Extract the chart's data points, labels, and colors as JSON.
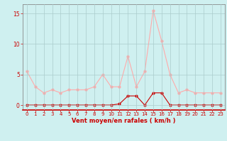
{
  "x": [
    0,
    1,
    2,
    3,
    4,
    5,
    6,
    7,
    8,
    9,
    10,
    11,
    12,
    13,
    14,
    15,
    16,
    17,
    18,
    19,
    20,
    21,
    22,
    23
  ],
  "line1_y": [
    5.5,
    3.0,
    2.0,
    2.5,
    2.0,
    2.5,
    2.5,
    2.5,
    3.0,
    5.0,
    3.0,
    3.0,
    8.0,
    3.0,
    5.5,
    15.5,
    10.5,
    5.0,
    2.0,
    2.5,
    2.0,
    2.0,
    2.0,
    2.0
  ],
  "line2_y": [
    0,
    0,
    0,
    0,
    0,
    0,
    0,
    0,
    0,
    0,
    0,
    0.2,
    1.5,
    1.5,
    0,
    2.0,
    2.0,
    0,
    0,
    0,
    0,
    0,
    0,
    0
  ],
  "line1_color": "#ffaaaa",
  "line2_color": "#cc0000",
  "background_color": "#cff0f0",
  "grid_color": "#aacccc",
  "xlabel": "Vent moyen/en rafales ( km/h )",
  "xlim": [
    -0.5,
    23.5
  ],
  "ylim": [
    -0.8,
    16.5
  ],
  "yticks": [
    0,
    5,
    10,
    15
  ],
  "xticks": [
    0,
    1,
    2,
    3,
    4,
    5,
    6,
    7,
    8,
    9,
    10,
    11,
    12,
    13,
    14,
    15,
    16,
    17,
    18,
    19,
    20,
    21,
    22,
    23
  ],
  "tick_color": "#cc0000",
  "label_color": "#cc0000",
  "spine_color": "#888888"
}
